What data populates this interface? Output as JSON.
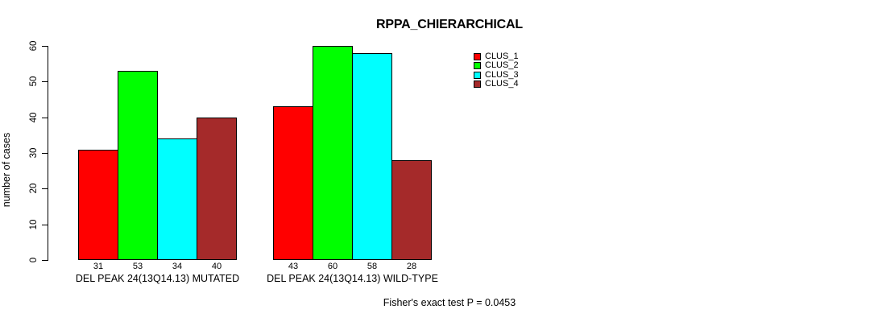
{
  "chart_data": {
    "type": "bar",
    "title": "RPPA_CHIERARCHICAL",
    "xlabel": "",
    "ylabel": "number of cases",
    "ylim": [
      0,
      60
    ],
    "yticks": [
      0,
      10,
      20,
      30,
      40,
      50,
      60
    ],
    "grid": false,
    "legend_position": "top-right",
    "categories": [
      "DEL PEAK 24(13Q14.13) MUTATED",
      "DEL PEAK 24(13Q14.13) WILD-TYPE"
    ],
    "series": [
      {
        "name": "CLUS_1",
        "color": "#FF0000",
        "values": [
          31,
          43
        ]
      },
      {
        "name": "CLUS_2",
        "color": "#00FF00",
        "values": [
          53,
          60
        ]
      },
      {
        "name": "CLUS_3",
        "color": "#00FFFF",
        "values": [
          34,
          58
        ]
      },
      {
        "name": "CLUS_4",
        "color": "#A52A2A",
        "values": [
          40,
          28
        ]
      }
    ],
    "bar_value_labels": [
      [
        31,
        53,
        34,
        40
      ],
      [
        43,
        60,
        58,
        28
      ]
    ],
    "annotation": "Fisher's exact test P = 0.0453"
  }
}
